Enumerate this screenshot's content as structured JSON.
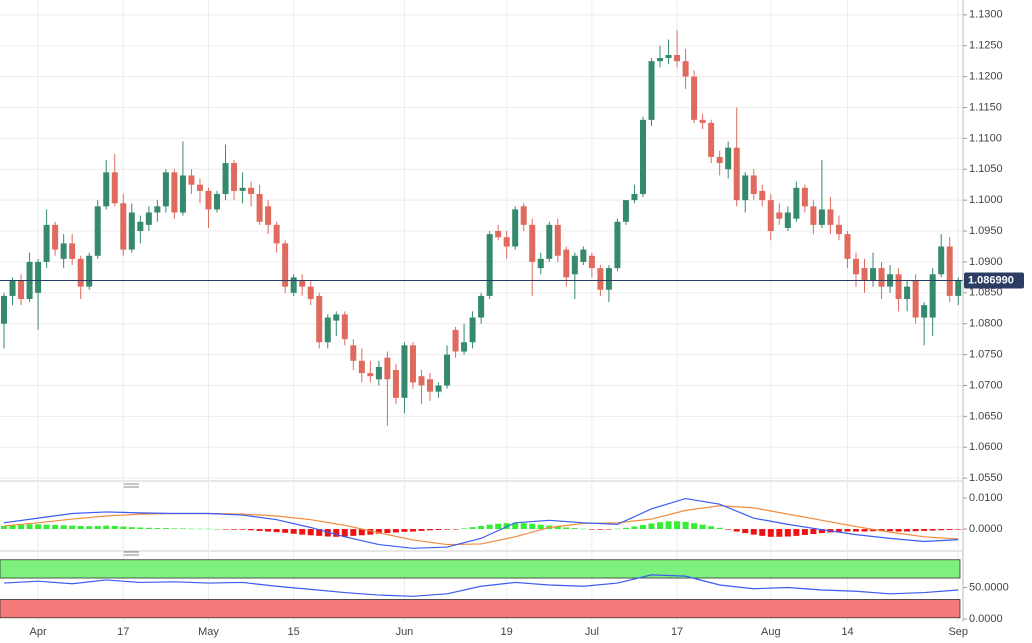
{
  "chart_data": [
    {
      "type": "candlestick",
      "up_color": "#35896c",
      "down_color": "#df6a5d",
      "grid": true,
      "xlim": [
        -0.47,
        112.56
      ],
      "ylim": [
        1.0547,
        1.1324
      ],
      "yticks": [
        {
          "value": 1.055,
          "label": "1.0550"
        },
        {
          "value": 1.06,
          "label": "1.0600"
        },
        {
          "value": 1.065,
          "label": "1.0650"
        },
        {
          "value": 1.07,
          "label": "1.0700"
        },
        {
          "value": 1.075,
          "label": "1.0750"
        },
        {
          "value": 1.08,
          "label": "1.0800"
        },
        {
          "value": 1.085,
          "label": "1.0850"
        },
        {
          "value": 1.09,
          "label": "1.0900"
        },
        {
          "value": 1.095,
          "label": "1.0950"
        },
        {
          "value": 1.1,
          "label": "1.1000"
        },
        {
          "value": 1.105,
          "label": "1.1050"
        },
        {
          "value": 1.11,
          "label": "1.1100"
        },
        {
          "value": 1.115,
          "label": "1.1150"
        },
        {
          "value": 1.12,
          "label": "1.1200"
        },
        {
          "value": 1.125,
          "label": "1.1250"
        },
        {
          "value": 1.13,
          "label": "1.1300"
        }
      ],
      "xticks": [
        {
          "value": 4,
          "label": "Apr"
        },
        {
          "value": 14,
          "label": "17"
        },
        {
          "value": 24,
          "label": "May"
        },
        {
          "value": 34,
          "label": "15"
        },
        {
          "value": 47,
          "label": "Jun"
        },
        {
          "value": 59,
          "label": "19"
        },
        {
          "value": 69,
          "label": "Jul"
        },
        {
          "value": 79,
          "label": "17"
        },
        {
          "value": 90,
          "label": "Aug"
        },
        {
          "value": 99,
          "label": "14"
        },
        {
          "value": 112,
          "label": "Sep"
        }
      ],
      "last_price": {
        "value": 1.08699,
        "label": "1.086990"
      },
      "last_price_color": "#2b3d63",
      "candles": [
        [
          1.08,
          1.085,
          1.076,
          1.0845
        ],
        [
          1.0845,
          1.0875,
          1.083,
          1.087
        ],
        [
          1.087,
          1.088,
          1.083,
          1.084
        ],
        [
          1.084,
          1.0915,
          1.0835,
          1.09
        ],
        [
          1.085,
          1.0905,
          1.079,
          1.09
        ],
        [
          1.09,
          1.0985,
          1.089,
          1.096
        ],
        [
          1.096,
          1.0965,
          1.091,
          1.092
        ],
        [
          1.0905,
          1.0945,
          1.089,
          1.093
        ],
        [
          1.093,
          1.0945,
          1.0895,
          1.0905
        ],
        [
          1.0905,
          1.091,
          1.084,
          1.086
        ],
        [
          1.086,
          1.0915,
          1.0855,
          1.091
        ],
        [
          1.091,
          1.1,
          1.0905,
          1.099
        ],
        [
          1.099,
          1.1065,
          1.0985,
          1.1045
        ],
        [
          1.1045,
          1.1075,
          1.099,
          1.0995
        ],
        [
          1.0995,
          1.101,
          1.091,
          1.092
        ],
        [
          1.092,
          1.0995,
          1.0915,
          1.098
        ],
        [
          1.095,
          1.0975,
          1.093,
          1.0965
        ],
        [
          1.096,
          1.099,
          1.095,
          1.098
        ],
        [
          1.098,
          1.1,
          1.0965,
          1.099
        ],
        [
          1.099,
          1.105,
          1.098,
          1.1045
        ],
        [
          1.1045,
          1.105,
          1.097,
          1.098
        ],
        [
          1.098,
          1.1095,
          1.0975,
          1.104
        ],
        [
          1.104,
          1.105,
          1.101,
          1.1025
        ],
        [
          1.1025,
          1.1035,
          1.0995,
          1.1015
        ],
        [
          1.1015,
          1.102,
          1.0955,
          1.0985
        ],
        [
          1.0985,
          1.1015,
          1.098,
          1.101
        ],
        [
          1.101,
          1.109,
          1.1,
          1.106
        ],
        [
          1.106,
          1.1065,
          1.1,
          1.1015
        ],
        [
          1.1015,
          1.1045,
          1.0995,
          1.102
        ],
        [
          1.102,
          1.103,
          1.099,
          1.101
        ],
        [
          1.101,
          1.1025,
          1.096,
          1.0965
        ],
        [
          1.099,
          1.1,
          1.0945,
          1.096
        ],
        [
          1.096,
          1.0965,
          1.0915,
          1.093
        ],
        [
          1.093,
          1.0935,
          1.085,
          1.086
        ],
        [
          1.085,
          1.088,
          1.0845,
          1.0875
        ],
        [
          1.087,
          1.088,
          1.0845,
          1.086
        ],
        [
          1.086,
          1.087,
          1.083,
          1.084
        ],
        [
          1.0845,
          1.085,
          1.076,
          1.077
        ],
        [
          1.077,
          1.0815,
          1.076,
          1.081
        ],
        [
          1.0805,
          1.082,
          1.078,
          1.0815
        ],
        [
          1.0815,
          1.082,
          1.0765,
          1.0775
        ],
        [
          1.0765,
          1.0775,
          1.0725,
          1.074
        ],
        [
          1.074,
          1.076,
          1.0705,
          1.072
        ],
        [
          1.072,
          1.074,
          1.0705,
          1.0715
        ],
        [
          1.071,
          1.074,
          1.07,
          1.073
        ],
        [
          1.0745,
          1.0755,
          1.0635,
          1.071
        ],
        [
          1.0725,
          1.0735,
          1.067,
          1.068
        ],
        [
          1.068,
          1.077,
          1.0655,
          1.0765
        ],
        [
          1.0765,
          1.077,
          1.0695,
          1.0705
        ],
        [
          1.0715,
          1.0725,
          1.067,
          1.07
        ],
        [
          1.071,
          1.072,
          1.0675,
          1.069
        ],
        [
          1.069,
          1.0705,
          1.068,
          1.07
        ],
        [
          1.07,
          1.0765,
          1.0695,
          1.075
        ],
        [
          1.079,
          1.0795,
          1.0745,
          1.0755
        ],
        [
          1.0755,
          1.08,
          1.075,
          1.077
        ],
        [
          1.077,
          1.082,
          1.076,
          1.081
        ],
        [
          1.081,
          1.085,
          1.08,
          1.0845
        ],
        [
          1.0845,
          1.095,
          1.084,
          1.0945
        ],
        [
          1.095,
          1.096,
          1.0935,
          1.094
        ],
        [
          1.094,
          1.095,
          1.0905,
          1.0925
        ],
        [
          1.0925,
          1.099,
          1.092,
          1.0985
        ],
        [
          1.099,
          1.0995,
          1.095,
          1.096
        ],
        [
          1.096,
          1.097,
          1.0845,
          1.09
        ],
        [
          1.089,
          1.0915,
          1.088,
          1.0905
        ],
        [
          1.0905,
          1.0965,
          1.09,
          1.096
        ],
        [
          1.096,
          1.097,
          1.09,
          1.091
        ],
        [
          1.092,
          1.0925,
          1.086,
          1.0875
        ],
        [
          1.088,
          1.0915,
          1.084,
          1.091
        ],
        [
          1.09,
          1.0925,
          1.0895,
          1.092
        ],
        [
          1.091,
          1.0915,
          1.0875,
          1.089
        ],
        [
          1.089,
          1.0895,
          1.0845,
          1.0855
        ],
        [
          1.0855,
          1.0895,
          1.0835,
          1.089
        ],
        [
          1.089,
          1.097,
          1.0885,
          1.0965
        ],
        [
          1.0965,
          1.1,
          1.096,
          1.1
        ],
        [
          1.1,
          1.1025,
          1.0995,
          1.101
        ],
        [
          1.101,
          1.1135,
          1.1005,
          1.113
        ],
        [
          1.113,
          1.123,
          1.112,
          1.1225
        ],
        [
          1.1225,
          1.125,
          1.1215,
          1.123
        ],
        [
          1.123,
          1.126,
          1.122,
          1.1235
        ],
        [
          1.1235,
          1.1275,
          1.1215,
          1.1225
        ],
        [
          1.1225,
          1.1245,
          1.118,
          1.12
        ],
        [
          1.12,
          1.121,
          1.1125,
          1.113
        ],
        [
          1.113,
          1.114,
          1.1115,
          1.1125
        ],
        [
          1.1125,
          1.113,
          1.106,
          1.107
        ],
        [
          1.107,
          1.108,
          1.104,
          1.106
        ],
        [
          1.105,
          1.1095,
          1.1035,
          1.1085
        ],
        [
          1.1085,
          1.115,
          1.099,
          1.1
        ],
        [
          1.1,
          1.1045,
          1.098,
          1.104
        ],
        [
          1.104,
          1.105,
          1.1,
          1.101
        ],
        [
          1.1015,
          1.1025,
          1.099,
          1.1
        ],
        [
          1.1,
          1.101,
          1.0935,
          1.095
        ],
        [
          1.098,
          1.0995,
          1.096,
          1.097
        ],
        [
          1.0955,
          1.099,
          1.095,
          1.098
        ],
        [
          1.097,
          1.103,
          1.0965,
          1.102
        ],
        [
          1.102,
          1.1025,
          1.098,
          1.099
        ],
        [
          1.099,
          1.1,
          1.0945,
          1.096
        ],
        [
          1.096,
          1.1065,
          1.0955,
          1.0985
        ],
        [
          1.0985,
          1.1005,
          1.0945,
          1.096
        ],
        [
          1.096,
          1.0975,
          1.0935,
          1.0945
        ],
        [
          1.0945,
          1.095,
          1.089,
          1.0905
        ],
        [
          1.0905,
          1.0915,
          1.086,
          1.088
        ],
        [
          1.089,
          1.0905,
          1.085,
          1.087
        ],
        [
          1.087,
          1.0915,
          1.086,
          1.089
        ],
        [
          1.089,
          1.09,
          1.084,
          1.086
        ],
        [
          1.086,
          1.0895,
          1.085,
          1.088
        ],
        [
          1.088,
          1.089,
          1.082,
          1.084
        ],
        [
          1.084,
          1.087,
          1.082,
          1.086
        ],
        [
          1.087,
          1.088,
          1.08,
          1.081
        ],
        [
          1.081,
          1.0835,
          1.0765,
          1.083
        ],
        [
          1.081,
          1.089,
          1.078,
          1.088
        ],
        [
          1.088,
          1.0945,
          1.0875,
          1.0925
        ],
        [
          1.0925,
          1.094,
          1.0835,
          1.0845
        ],
        [
          1.0845,
          1.0875,
          1.083,
          1.087
        ]
      ]
    },
    {
      "type": "macd",
      "xlim": [
        -0.47,
        112.56
      ],
      "ylim": [
        -0.0061,
        0.0132
      ],
      "yticks": [
        {
          "value": 0.01,
          "label": "0.0100"
        },
        {
          "value": 0,
          "label": "0.0000"
        }
      ],
      "macd_color": "#3b5cf2",
      "signal_color": "#f28c3c",
      "up_color": "#33ee33",
      "down_color": "#ee1111",
      "x": [
        0,
        4,
        8,
        12,
        16,
        20,
        24,
        28,
        32,
        36,
        40,
        44,
        48,
        52,
        56,
        60,
        64,
        68,
        72,
        76,
        80,
        84,
        88,
        92,
        96,
        100,
        104,
        108,
        112
      ],
      "macd": [
        0.002,
        0.0035,
        0.005,
        0.0055,
        0.0052,
        0.005,
        0.005,
        0.0045,
        0.003,
        0.0005,
        -0.0025,
        -0.005,
        -0.0062,
        -0.0058,
        -0.003,
        0.002,
        0.0028,
        0.002,
        0.0015,
        0.0065,
        0.0098,
        0.008,
        0.0035,
        0.0015,
        -0.0002,
        -0.0018,
        -0.003,
        -0.004,
        -0.0034
      ],
      "signal": [
        0.001,
        0.002,
        0.0032,
        0.0042,
        0.0048,
        0.005,
        0.005,
        0.0048,
        0.0042,
        0.003,
        0.0012,
        -0.0012,
        -0.0035,
        -0.005,
        -0.0048,
        -0.0025,
        0.0005,
        0.0018,
        0.002,
        0.0032,
        0.006,
        0.0075,
        0.0068,
        0.0048,
        0.0028,
        0.0008,
        -0.001,
        -0.0025,
        -0.0032
      ],
      "histogram": [
        0.001,
        0.0012,
        0.0014,
        0.0015,
        0.0015,
        0.0014,
        0.0013,
        0.0012,
        0.0011,
        0.001,
        0.0009,
        0.001,
        0.0011,
        0.001,
        0.0008,
        0.0006,
        0.0005,
        0.0004,
        0.0003,
        0.0003,
        0.0002,
        0.0002,
        0.0001,
        0.0001,
        0.0001,
        0.0,
        -0.0001,
        -0.0002,
        -0.0002,
        -0.0004,
        -0.0006,
        -0.0008,
        -0.001,
        -0.0012,
        -0.0015,
        -0.0018,
        -0.002,
        -0.0022,
        -0.0024,
        -0.0025,
        -0.0024,
        -0.0022,
        -0.002,
        -0.0018,
        -0.0015,
        -0.0013,
        -0.0011,
        -0.0009,
        -0.0008,
        -0.0006,
        -0.0004,
        -0.0003,
        -0.0002,
        -0.0001,
        0.0002,
        0.0006,
        0.001,
        0.0014,
        0.0017,
        0.0019,
        0.002,
        0.0019,
        0.0017,
        0.0014,
        0.0011,
        0.0008,
        0.0005,
        0.0003,
        0.0001,
        -0.0001,
        -0.0002,
        -0.0001,
        0.0001,
        0.0004,
        0.0008,
        0.0013,
        0.0018,
        0.0022,
        0.0025,
        0.0025,
        0.0023,
        0.0019,
        0.0014,
        0.0009,
        0.0004,
        -0.0002,
        -0.0008,
        -0.0013,
        -0.0018,
        -0.0022,
        -0.0025,
        -0.0025,
        -0.0024,
        -0.0022,
        -0.0019,
        -0.0016,
        -0.0013,
        -0.0011,
        -0.0009,
        -0.0008,
        -0.0008,
        -0.0008,
        -0.0007,
        -0.0007,
        -0.0007,
        -0.0008,
        -0.0008,
        -0.0007,
        -0.0006,
        -0.0005,
        -0.0004,
        -0.0003,
        -0.0002
      ]
    },
    {
      "type": "rsi",
      "xlim": [
        -0.47,
        112.56
      ],
      "ylim": [
        -4.7,
        104.7
      ],
      "yticks": [
        {
          "value": 50,
          "label": "50.0000"
        },
        {
          "value": 0,
          "label": "0.0000"
        }
      ],
      "color": "#3b5cf2",
      "upper_band": [
        65,
        94
      ],
      "upper_color": "#7df07d",
      "lower_band": [
        2,
        31
      ],
      "lower_color": "#f47a7a",
      "x": [
        0,
        4,
        8,
        12,
        16,
        20,
        24,
        28,
        32,
        36,
        40,
        44,
        48,
        52,
        56,
        60,
        64,
        68,
        72,
        76,
        80,
        84,
        88,
        92,
        96,
        100,
        104,
        108,
        112
      ],
      "values": [
        57,
        60,
        56,
        62,
        58,
        59,
        57,
        58,
        52,
        47,
        42,
        38,
        36,
        40,
        52,
        58,
        54,
        52,
        57,
        70,
        68,
        54,
        48,
        50,
        46,
        44,
        40,
        42,
        46
      ]
    }
  ]
}
